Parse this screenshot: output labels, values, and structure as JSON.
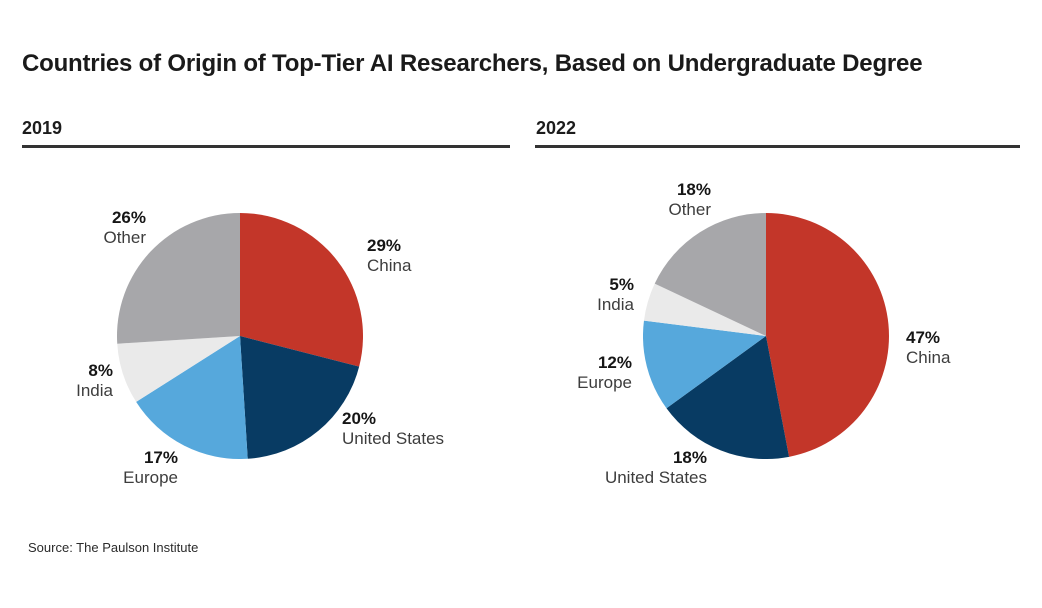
{
  "page": {
    "title": "Countries of Origin of Top-Tier AI Researchers, Based on Undergraduate Degree",
    "source": "Source: The Paulson Institute"
  },
  "colors": {
    "china": "#C33629",
    "united_states": "#083B63",
    "europe": "#56A8DC",
    "india": "#EAEAEA",
    "other": "#A7A7AA",
    "header_rule": "#333333",
    "text_dark": "#161616",
    "text_name": "#3D3D3D"
  },
  "chart_data": [
    {
      "type": "pie",
      "title": "2019",
      "start_angle": "12-oclock",
      "direction": "clockwise",
      "legend_position": "around-slices",
      "slices": [
        {
          "label": "China",
          "value": 29,
          "pct_label": "29%",
          "color": "#C33629"
        },
        {
          "label": "United States",
          "value": 20,
          "pct_label": "20%",
          "color": "#083B63"
        },
        {
          "label": "Europe",
          "value": 17,
          "pct_label": "17%",
          "color": "#56A8DC"
        },
        {
          "label": "India",
          "value": 8,
          "pct_label": "8%",
          "color": "#EAEAEA"
        },
        {
          "label": "Other",
          "value": 26,
          "pct_label": "26%",
          "color": "#A7A7AA"
        }
      ]
    },
    {
      "type": "pie",
      "title": "2022",
      "start_angle": "12-oclock",
      "direction": "clockwise",
      "legend_position": "around-slices",
      "slices": [
        {
          "label": "China",
          "value": 47,
          "pct_label": "47%",
          "color": "#C33629"
        },
        {
          "label": "United States",
          "value": 18,
          "pct_label": "18%",
          "color": "#083B63"
        },
        {
          "label": "Europe",
          "value": 12,
          "pct_label": "12%",
          "color": "#56A8DC"
        },
        {
          "label": "India",
          "value": 5,
          "pct_label": "5%",
          "color": "#EAEAEA"
        },
        {
          "label": "Other",
          "value": 18,
          "pct_label": "18%",
          "color": "#A7A7AA"
        }
      ]
    }
  ]
}
